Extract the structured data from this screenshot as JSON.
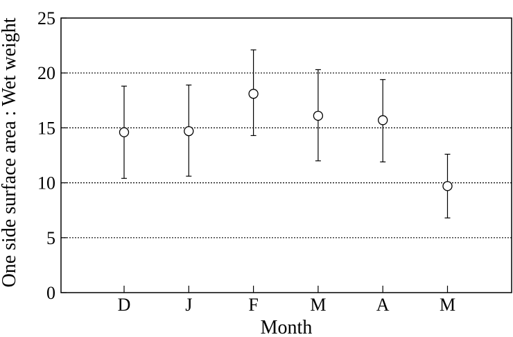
{
  "chart_data": {
    "type": "scatter",
    "title": "",
    "xlabel": "Month",
    "ylabel": "One side surface area : Wet weight",
    "categories": [
      "D",
      "J",
      "F",
      "M",
      "A",
      "M"
    ],
    "series": [
      {
        "values": [
          14.6,
          14.7,
          18.1,
          16.1,
          15.7,
          9.7
        ],
        "error_low": [
          10.4,
          10.6,
          14.3,
          12.0,
          11.9,
          6.8
        ],
        "error_high": [
          18.8,
          18.9,
          22.1,
          20.3,
          19.4,
          12.6
        ]
      }
    ],
    "ylim": [
      0,
      25
    ],
    "yticks": [
      "0",
      "5",
      "10",
      "15",
      "20",
      "25"
    ],
    "grid": "horizontal-dotted",
    "marker": "open-circle"
  }
}
